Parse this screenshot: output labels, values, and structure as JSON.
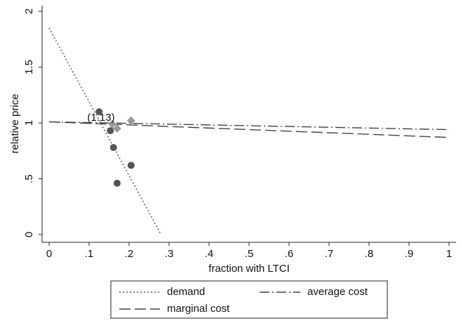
{
  "chart_data": {
    "type": "line",
    "xlabel": "fraction with LTCI",
    "ylabel": "relative price",
    "xlim": [
      0,
      1
    ],
    "ylim": [
      0,
      2
    ],
    "xticks": [
      0,
      {
        "value": 0.1,
        "label": ".1"
      },
      {
        "value": 0.2,
        "label": ".2"
      },
      {
        "value": 0.3,
        "label": ".3"
      },
      {
        "value": 0.4,
        "label": ".4"
      },
      {
        "value": 0.5,
        "label": ".5"
      },
      {
        "value": 0.6,
        "label": ".6"
      },
      {
        "value": 0.7,
        "label": ".7"
      },
      {
        "value": 0.8,
        "label": ".8"
      },
      {
        "value": 0.9,
        "label": ".9"
      },
      1
    ],
    "yticks": [
      0,
      {
        "value": 0.5,
        "label": ".5"
      },
      1,
      1.5,
      2
    ],
    "series": [
      {
        "name": "demand",
        "color": "#555555",
        "dash": "dotted",
        "x": [
          0,
          0.28
        ],
        "values": [
          1.85,
          0
        ]
      },
      {
        "name": "average cost",
        "color": "#444444",
        "dash": "dashdot",
        "x": [
          0,
          1
        ],
        "values": [
          1.01,
          0.94
        ]
      },
      {
        "name": "marginal cost",
        "color": "#444444",
        "dash": "longdash",
        "x": [
          0,
          1
        ],
        "values": [
          1.01,
          0.87
        ]
      }
    ],
    "scatter": [
      {
        "marker": "circle",
        "color": "#555555",
        "x": [
          0.125,
          0.153,
          0.161,
          0.17,
          0.205
        ],
        "values": [
          1.1,
          0.93,
          0.78,
          0.46,
          0.62
        ]
      },
      {
        "marker": "diamond",
        "color": "#999999",
        "x": [
          0.158,
          0.17,
          0.205
        ],
        "values": [
          0.99,
          0.95,
          1.02
        ]
      }
    ],
    "annotation": "(1.13)"
  }
}
